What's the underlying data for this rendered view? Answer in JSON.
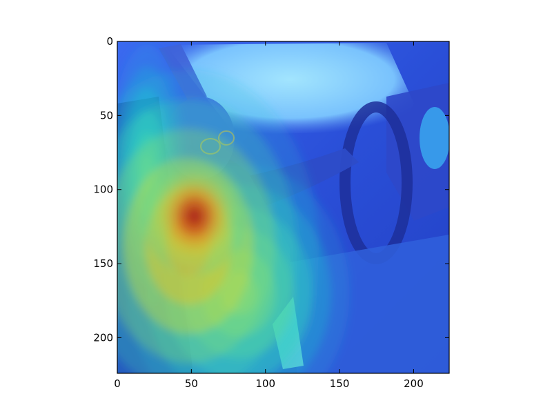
{
  "chart_data": {
    "type": "heatmap",
    "title": "",
    "xlabel": "",
    "ylabel": "",
    "xlim": [
      0,
      224
    ],
    "ylim": [
      224,
      0
    ],
    "x_ticks": [
      0,
      50,
      100,
      150,
      200
    ],
    "y_ticks": [
      0,
      50,
      100,
      150,
      200
    ],
    "x_tick_labels": [
      "0",
      "50",
      "100",
      "150",
      "200"
    ],
    "y_tick_labels": [
      "0",
      "50",
      "100",
      "150",
      "200"
    ],
    "grid": false,
    "colormap": "jet",
    "hotspots": [
      {
        "x": 52,
        "y": 118,
        "sx": 16,
        "sy": 18,
        "intensity": 1.0
      },
      {
        "x": 48,
        "y": 138,
        "sx": 40,
        "sy": 54,
        "intensity": 0.55
      },
      {
        "x": 82,
        "y": 170,
        "sx": 34,
        "sy": 40,
        "intensity": 0.35
      },
      {
        "x": 20,
        "y": 90,
        "sx": 12,
        "sy": 40,
        "intensity": 0.22
      }
    ],
    "colors": {
      "background_blue": "#2a4fd8",
      "windshield": "#8fdcff",
      "hot_red": "#c0141c",
      "warm_yellow": "#d6c83a"
    }
  }
}
